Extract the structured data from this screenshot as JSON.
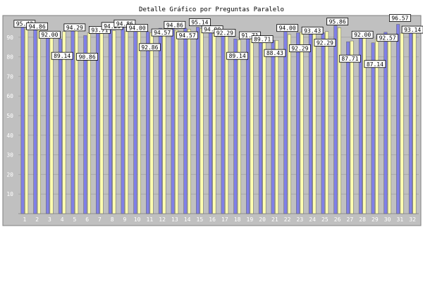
{
  "chart_data": {
    "type": "bar",
    "title": "Detalle Gráfico por Preguntas Paralelo",
    "categories": [
      "1",
      "2",
      "3",
      "4",
      "5",
      "6",
      "7",
      "8",
      "9",
      "10",
      "11",
      "12",
      "13",
      "14",
      "15",
      "16",
      "17",
      "18",
      "19",
      "20",
      "21",
      "22",
      "23",
      "24",
      "25",
      "26",
      "27",
      "28",
      "29",
      "30",
      "31",
      "32"
    ],
    "series": [
      {
        "color": "#8080e8",
        "values": [
          95.43,
          94.86,
          92.0,
          89.14,
          94.29,
          90.86,
          93.71,
          94.29,
          94.86,
          94.0,
          92.86,
          94.57,
          94.86,
          94.57,
          95.14,
          94.0,
          92.29,
          89.14,
          91.71,
          89.71,
          88.43,
          94.0,
          92.29,
          93.43,
          92.29,
          95.86,
          87.71,
          92.0,
          87.14,
          92.57,
          96.57,
          93.14
        ]
      },
      {
        "color": "#ffffb0",
        "values": [
          94.2,
          93.8,
          91.5,
          92.9,
          94.0,
          92.3,
          92.1,
          93.4,
          93.1,
          93.0,
          92.4,
          92.8,
          93.6,
          94.1,
          94.5,
          92.0,
          91.9,
          88.6,
          90.9,
          89.6,
          88.4,
          91.4,
          92.7,
          92.6,
          92.9,
          94.8,
          88.1,
          91.8,
          89.2,
          90.8,
          92.1,
          92.4
        ]
      }
    ],
    "labeled_values": [
      95.43,
      94.86,
      92.0,
      89.14,
      94.29,
      90.86,
      93.71,
      94.29,
      94.86,
      94.0,
      92.86,
      94.57,
      94.86,
      94.57,
      95.14,
      94.0,
      92.29,
      89.14,
      91.71,
      89.71,
      88.43,
      94.0,
      92.29,
      93.43,
      92.29,
      95.86,
      87.71,
      92.0,
      87.14,
      92.57,
      96.57,
      93.14
    ],
    "ylim": [
      0,
      100
    ],
    "yticks": [
      10,
      20,
      30,
      40,
      50,
      60,
      70,
      80,
      90
    ],
    "grid": true,
    "colors": {
      "plot_bg": "#c0c0c0",
      "axis_bg": "#ffffff"
    }
  }
}
